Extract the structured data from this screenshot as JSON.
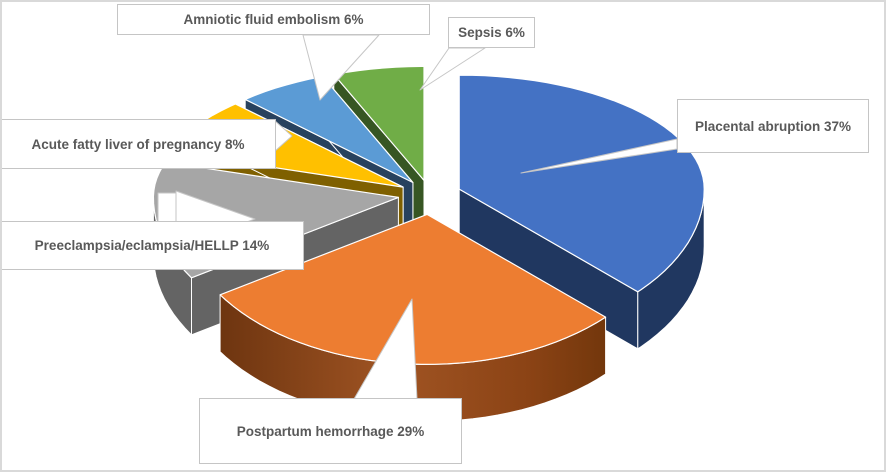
{
  "chart": {
    "background_color": "#FFFFFF",
    "frame_border_color": "#D9D9D9",
    "callout_fill": "#FFFFFF",
    "callout_border_color": "#C5C5C5",
    "label_text_color": "#595959"
  },
  "chart_data": {
    "type": "pie",
    "effect": "3d-exploded",
    "start_angle_deg": 0,
    "direction": "clockwise",
    "legend": "none",
    "slices": [
      {
        "label": "Placental abruption",
        "value": 37,
        "display": "Placental abruption 37%",
        "color": "#4472C4",
        "side_color": "#203760"
      },
      {
        "label": "Postpartum hemorrhage",
        "value": 29,
        "display": "Postpartum hemorrhage 29%",
        "color": "#ED7D31",
        "side_color": "#8B4315",
        "side_gradient": [
          "#6E3510",
          "#A05423",
          "#8B4315",
          "#73370C"
        ]
      },
      {
        "label": "Preeclampsia/eclampsia/HELLP",
        "value": 14,
        "display": "Preeclampsia/eclampsia/HELLP 14%",
        "color": "#A6A6A6",
        "side_color": "#646464"
      },
      {
        "label": "Acute fatty liver of pregnancy",
        "value": 8,
        "display": "Acute fatty liver of pregnancy 8%",
        "color": "#FFC000",
        "side_color": "#7F6000"
      },
      {
        "label": "Amniotic fluid embolism",
        "value": 6,
        "display": "Amniotic fluid embolism 6%",
        "color": "#5B9BD5",
        "side_color": "#28425E"
      },
      {
        "label": "Sepsis",
        "value": 6,
        "display": "Sepsis 6%",
        "color": "#70AD47",
        "side_color": "#375623"
      }
    ]
  }
}
